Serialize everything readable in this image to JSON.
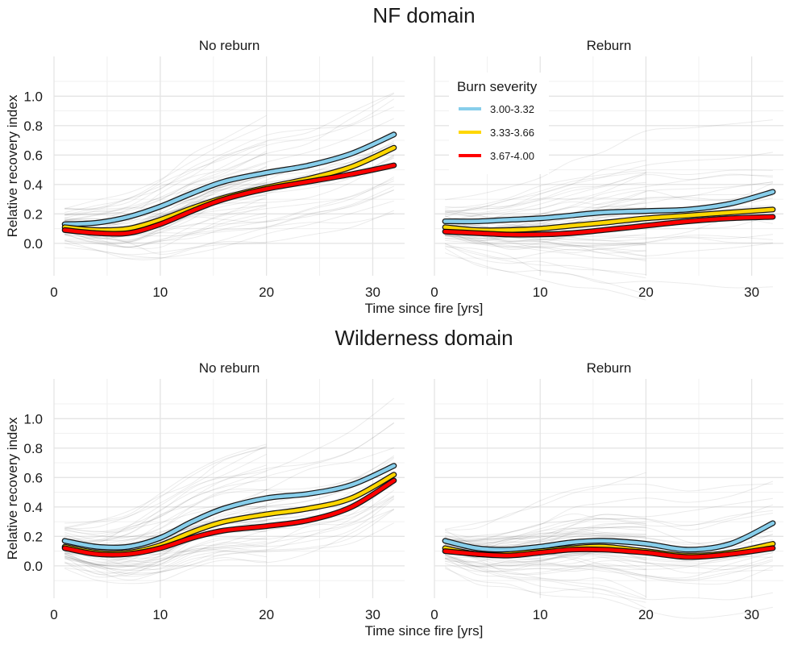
{
  "chart_data": [
    {
      "type": "line",
      "title": "NF domain",
      "xlabel": "Time since fire [yrs]",
      "ylabel": "Relative recovery index",
      "xlim": [
        0,
        33
      ],
      "ylim": [
        -0.22,
        1.27
      ],
      "xticks": [
        0,
        10,
        20,
        30
      ],
      "yticks": [
        0.0,
        0.2,
        0.4,
        0.6,
        0.8,
        1.0
      ],
      "grid": true,
      "legend": {
        "title": "Burn severity",
        "placement": "top-left of Reburn panel",
        "entries": [
          "3.00-3.32",
          "3.33-3.66",
          "3.67-4.00"
        ],
        "colors": [
          "#87ceeb",
          "#ffd700",
          "#ff0000"
        ]
      },
      "background": "many thin grey individual trajectories",
      "panels": [
        {
          "label": "No reburn",
          "x": [
            1,
            4,
            7,
            10,
            13,
            16,
            20,
            24,
            28,
            32
          ],
          "series": [
            {
              "name": "3.00-3.32",
              "color": "#87ceeb",
              "values": [
                0.13,
                0.14,
                0.18,
                0.25,
                0.34,
                0.42,
                0.48,
                0.53,
                0.61,
                0.74
              ]
            },
            {
              "name": "3.33-3.66",
              "color": "#ffd700",
              "values": [
                0.11,
                0.09,
                0.1,
                0.16,
                0.24,
                0.31,
                0.38,
                0.44,
                0.52,
                0.65
              ]
            },
            {
              "name": "3.67-4.00",
              "color": "#ff0000",
              "values": [
                0.09,
                0.07,
                0.07,
                0.13,
                0.22,
                0.3,
                0.37,
                0.42,
                0.47,
                0.53
              ]
            }
          ]
        },
        {
          "label": "Reburn",
          "x": [
            1,
            4,
            7,
            10,
            13,
            16,
            20,
            24,
            28,
            32
          ],
          "series": [
            {
              "name": "3.00-3.32",
              "color": "#87ceeb",
              "values": [
                0.15,
                0.15,
                0.16,
                0.17,
                0.19,
                0.21,
                0.22,
                0.23,
                0.27,
                0.35
              ]
            },
            {
              "name": "3.33-3.66",
              "color": "#ffd700",
              "values": [
                0.11,
                0.09,
                0.09,
                0.1,
                0.12,
                0.14,
                0.17,
                0.19,
                0.21,
                0.23
              ]
            },
            {
              "name": "3.67-4.00",
              "color": "#ff0000",
              "values": [
                0.08,
                0.07,
                0.06,
                0.06,
                0.07,
                0.09,
                0.12,
                0.15,
                0.17,
                0.18
              ]
            }
          ]
        }
      ]
    },
    {
      "type": "line",
      "title": "Wilderness domain",
      "xlabel": "Time since fire [yrs]",
      "ylabel": "Relative recovery index",
      "xlim": [
        0,
        33
      ],
      "ylim": [
        -0.22,
        1.27
      ],
      "xticks": [
        0,
        10,
        20,
        30
      ],
      "yticks": [
        0.0,
        0.2,
        0.4,
        0.6,
        0.8,
        1.0
      ],
      "grid": true,
      "background": "many thin grey individual trajectories",
      "panels": [
        {
          "label": "No reburn",
          "x": [
            1,
            4,
            7,
            10,
            13,
            16,
            20,
            24,
            28,
            32
          ],
          "series": [
            {
              "name": "3.00-3.32",
              "color": "#87ceeb",
              "values": [
                0.17,
                0.13,
                0.13,
                0.19,
                0.3,
                0.39,
                0.46,
                0.49,
                0.55,
                0.68
              ]
            },
            {
              "name": "3.33-3.66",
              "color": "#ffd700",
              "values": [
                0.13,
                0.09,
                0.09,
                0.14,
                0.23,
                0.3,
                0.35,
                0.39,
                0.46,
                0.62
              ]
            },
            {
              "name": "3.67-4.00",
              "color": "#ff0000",
              "values": [
                0.12,
                0.08,
                0.08,
                0.12,
                0.19,
                0.24,
                0.27,
                0.31,
                0.4,
                0.58
              ]
            }
          ]
        },
        {
          "label": "Reburn",
          "x": [
            1,
            4,
            7,
            10,
            13,
            16,
            20,
            24,
            28,
            32
          ],
          "series": [
            {
              "name": "3.00-3.32",
              "color": "#87ceeb",
              "values": [
                0.17,
                0.12,
                0.11,
                0.13,
                0.16,
                0.17,
                0.15,
                0.11,
                0.15,
                0.29
              ]
            },
            {
              "name": "3.33-3.66",
              "color": "#ffd700",
              "values": [
                0.12,
                0.08,
                0.08,
                0.1,
                0.12,
                0.13,
                0.1,
                0.07,
                0.09,
                0.15
              ]
            },
            {
              "name": "3.67-4.00",
              "color": "#ff0000",
              "values": [
                0.1,
                0.08,
                0.07,
                0.09,
                0.11,
                0.11,
                0.09,
                0.06,
                0.08,
                0.12
              ]
            }
          ]
        }
      ]
    }
  ]
}
